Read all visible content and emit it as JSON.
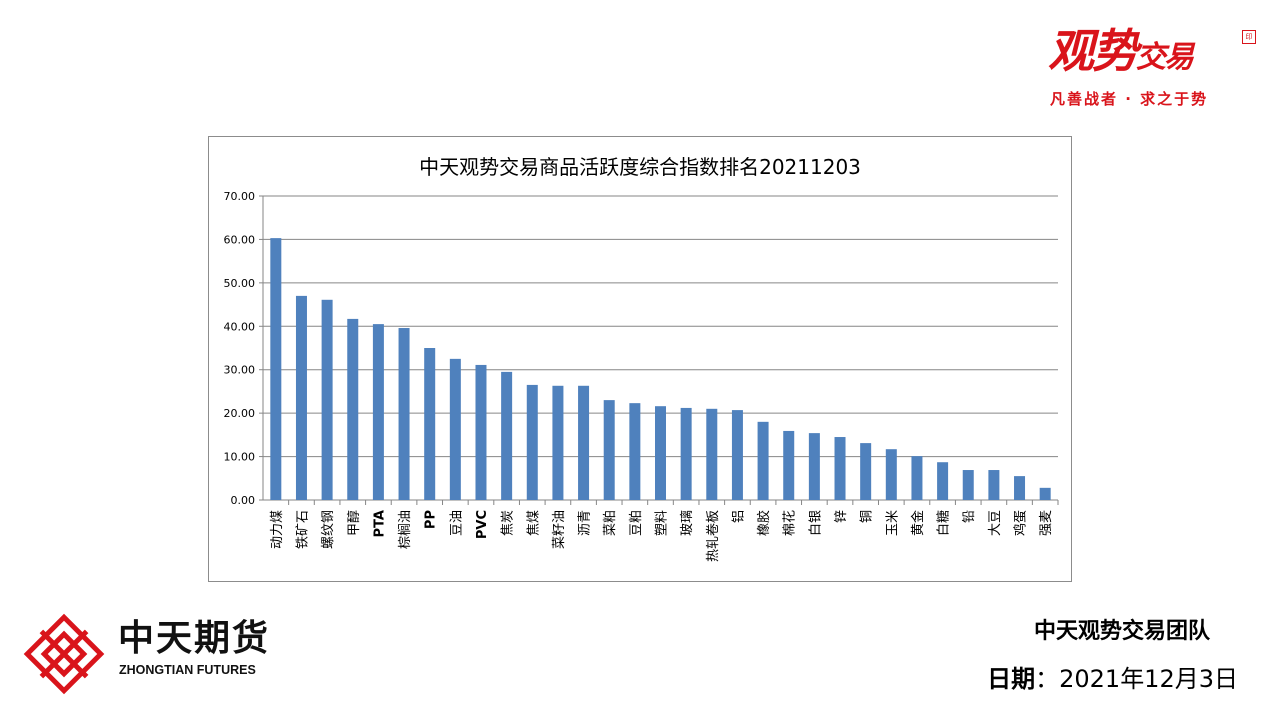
{
  "brand": {
    "name_a": "观势",
    "name_b": "交易",
    "seal": "印",
    "tagline": "凡善战者 · 求之于势"
  },
  "company": {
    "name_cn": "中天期货",
    "name_en": "ZHONGTIAN FUTURES"
  },
  "footer": {
    "team": "中天观势交易团队",
    "date_label": "日期",
    "date_sep": "：",
    "date_value": "2021年12月3日"
  },
  "colors": {
    "bar": "#4f81bd",
    "brand_red": "#d9141b",
    "grid": "#868686"
  },
  "chart_data": {
    "type": "bar",
    "title": "中天观势交易商品活跃度综合指数排名20211203",
    "xlabel": "",
    "ylabel": "",
    "ylim": [
      0,
      70
    ],
    "yticks": [
      "0.00",
      "10.00",
      "20.00",
      "30.00",
      "40.00",
      "50.00",
      "60.00",
      "70.00"
    ],
    "grid": true,
    "categories": [
      "动力煤",
      "铁矿石",
      "螺纹钢",
      "甲醇",
      "PTA",
      "棕榈油",
      "PP",
      "豆油",
      "PVC",
      "焦炭",
      "焦煤",
      "菜籽油",
      "沥青",
      "菜粕",
      "豆粕",
      "塑料",
      "玻璃",
      "热轧卷板",
      "铝",
      "橡胶",
      "棉花",
      "白银",
      "锌",
      "铜",
      "玉米",
      "黄金",
      "白糖",
      "铅",
      "大豆",
      "鸡蛋",
      "强麦"
    ],
    "values": [
      60.3,
      47.0,
      46.1,
      41.7,
      40.5,
      39.6,
      35.0,
      32.5,
      31.1,
      29.5,
      26.5,
      26.3,
      26.3,
      23.0,
      22.3,
      21.6,
      21.2,
      21.0,
      20.7,
      18.0,
      15.9,
      15.4,
      14.5,
      13.1,
      11.7,
      10.1,
      8.7,
      6.9,
      6.9,
      5.5,
      2.8
    ]
  }
}
